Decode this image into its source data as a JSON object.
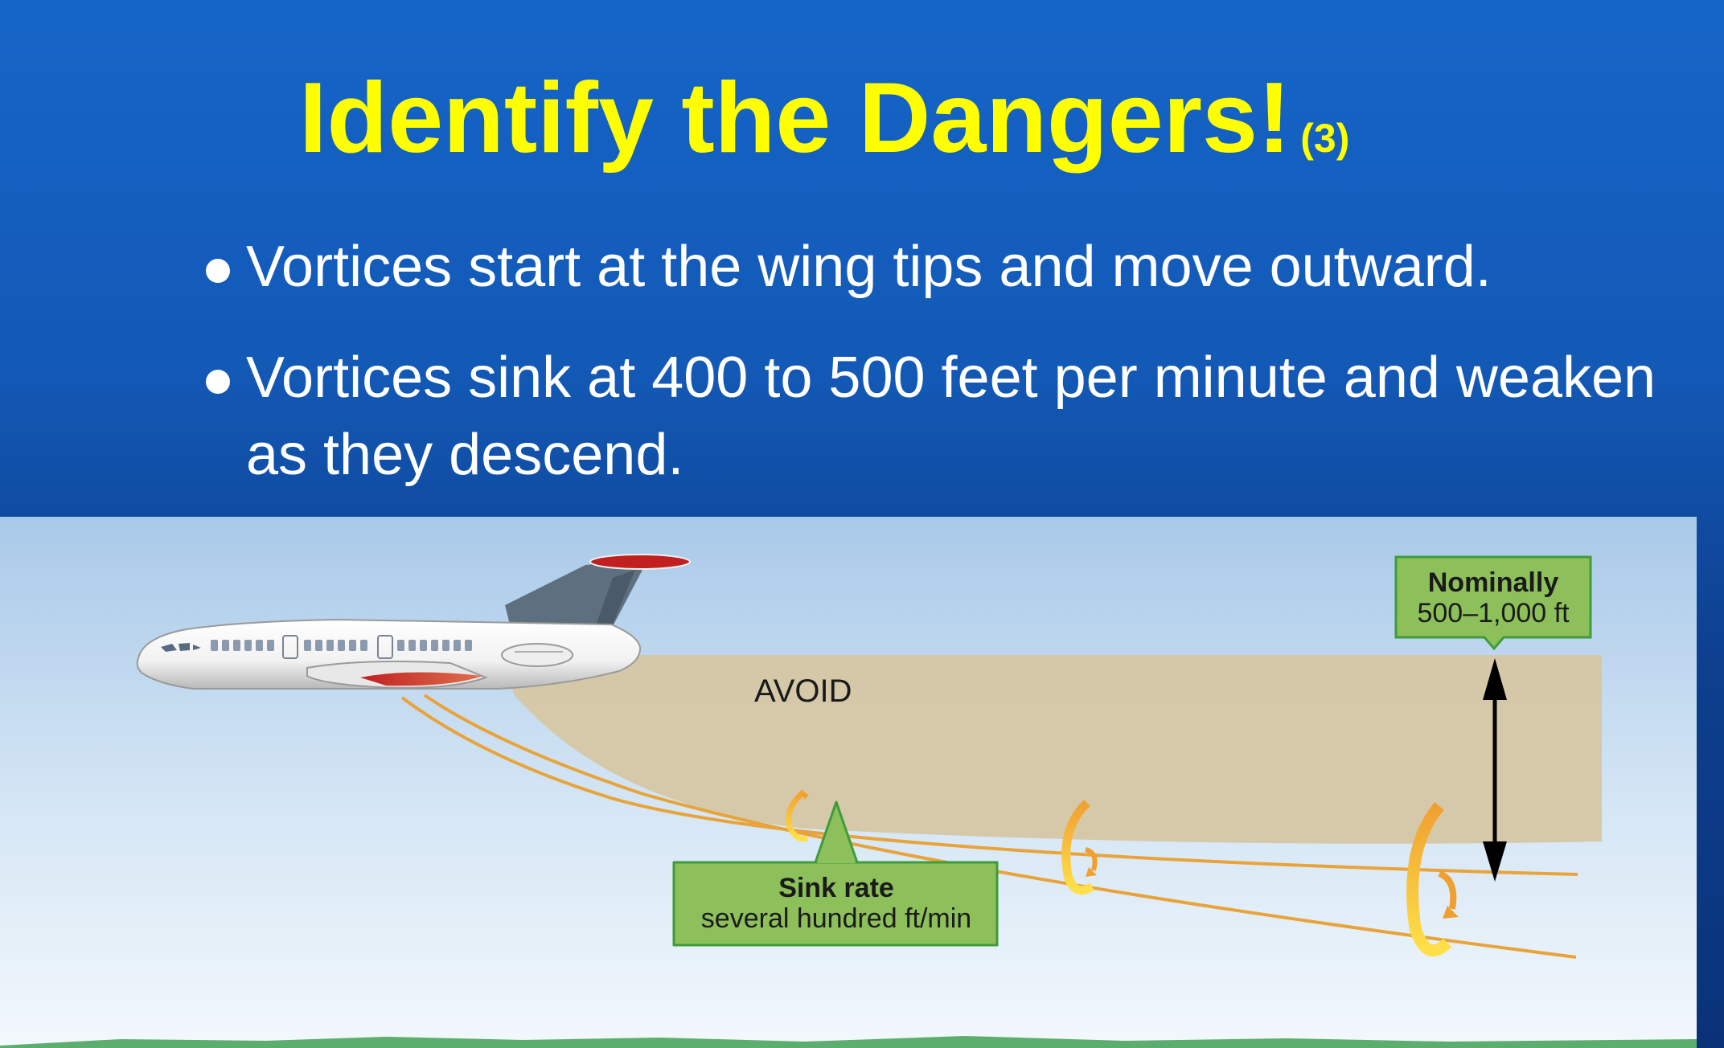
{
  "slide": {
    "title": "Identify the Dangers!",
    "title_number": "(3)",
    "bullets": [
      "Vortices start at the wing tips and move outward.",
      "Vortices sink at 400 to 500 feet per minute and weaken as they descend."
    ]
  },
  "diagram": {
    "avoid_label": "AVOID",
    "nominal_callout": {
      "title": "Nominally",
      "value": "500–1,000 ft"
    },
    "sink_callout": {
      "title": "Sink rate",
      "value": "several hundred ft/min"
    }
  },
  "colors": {
    "title": "#ffff00",
    "background_top": "#1565c8",
    "background_bottom": "#0a3278",
    "callout_fill": "#8dc05a",
    "callout_border": "#3f9b3c",
    "avoid_zone": "#d6c7a4",
    "vortex_line": "#e8a43a",
    "ground": "#5cae6e"
  }
}
